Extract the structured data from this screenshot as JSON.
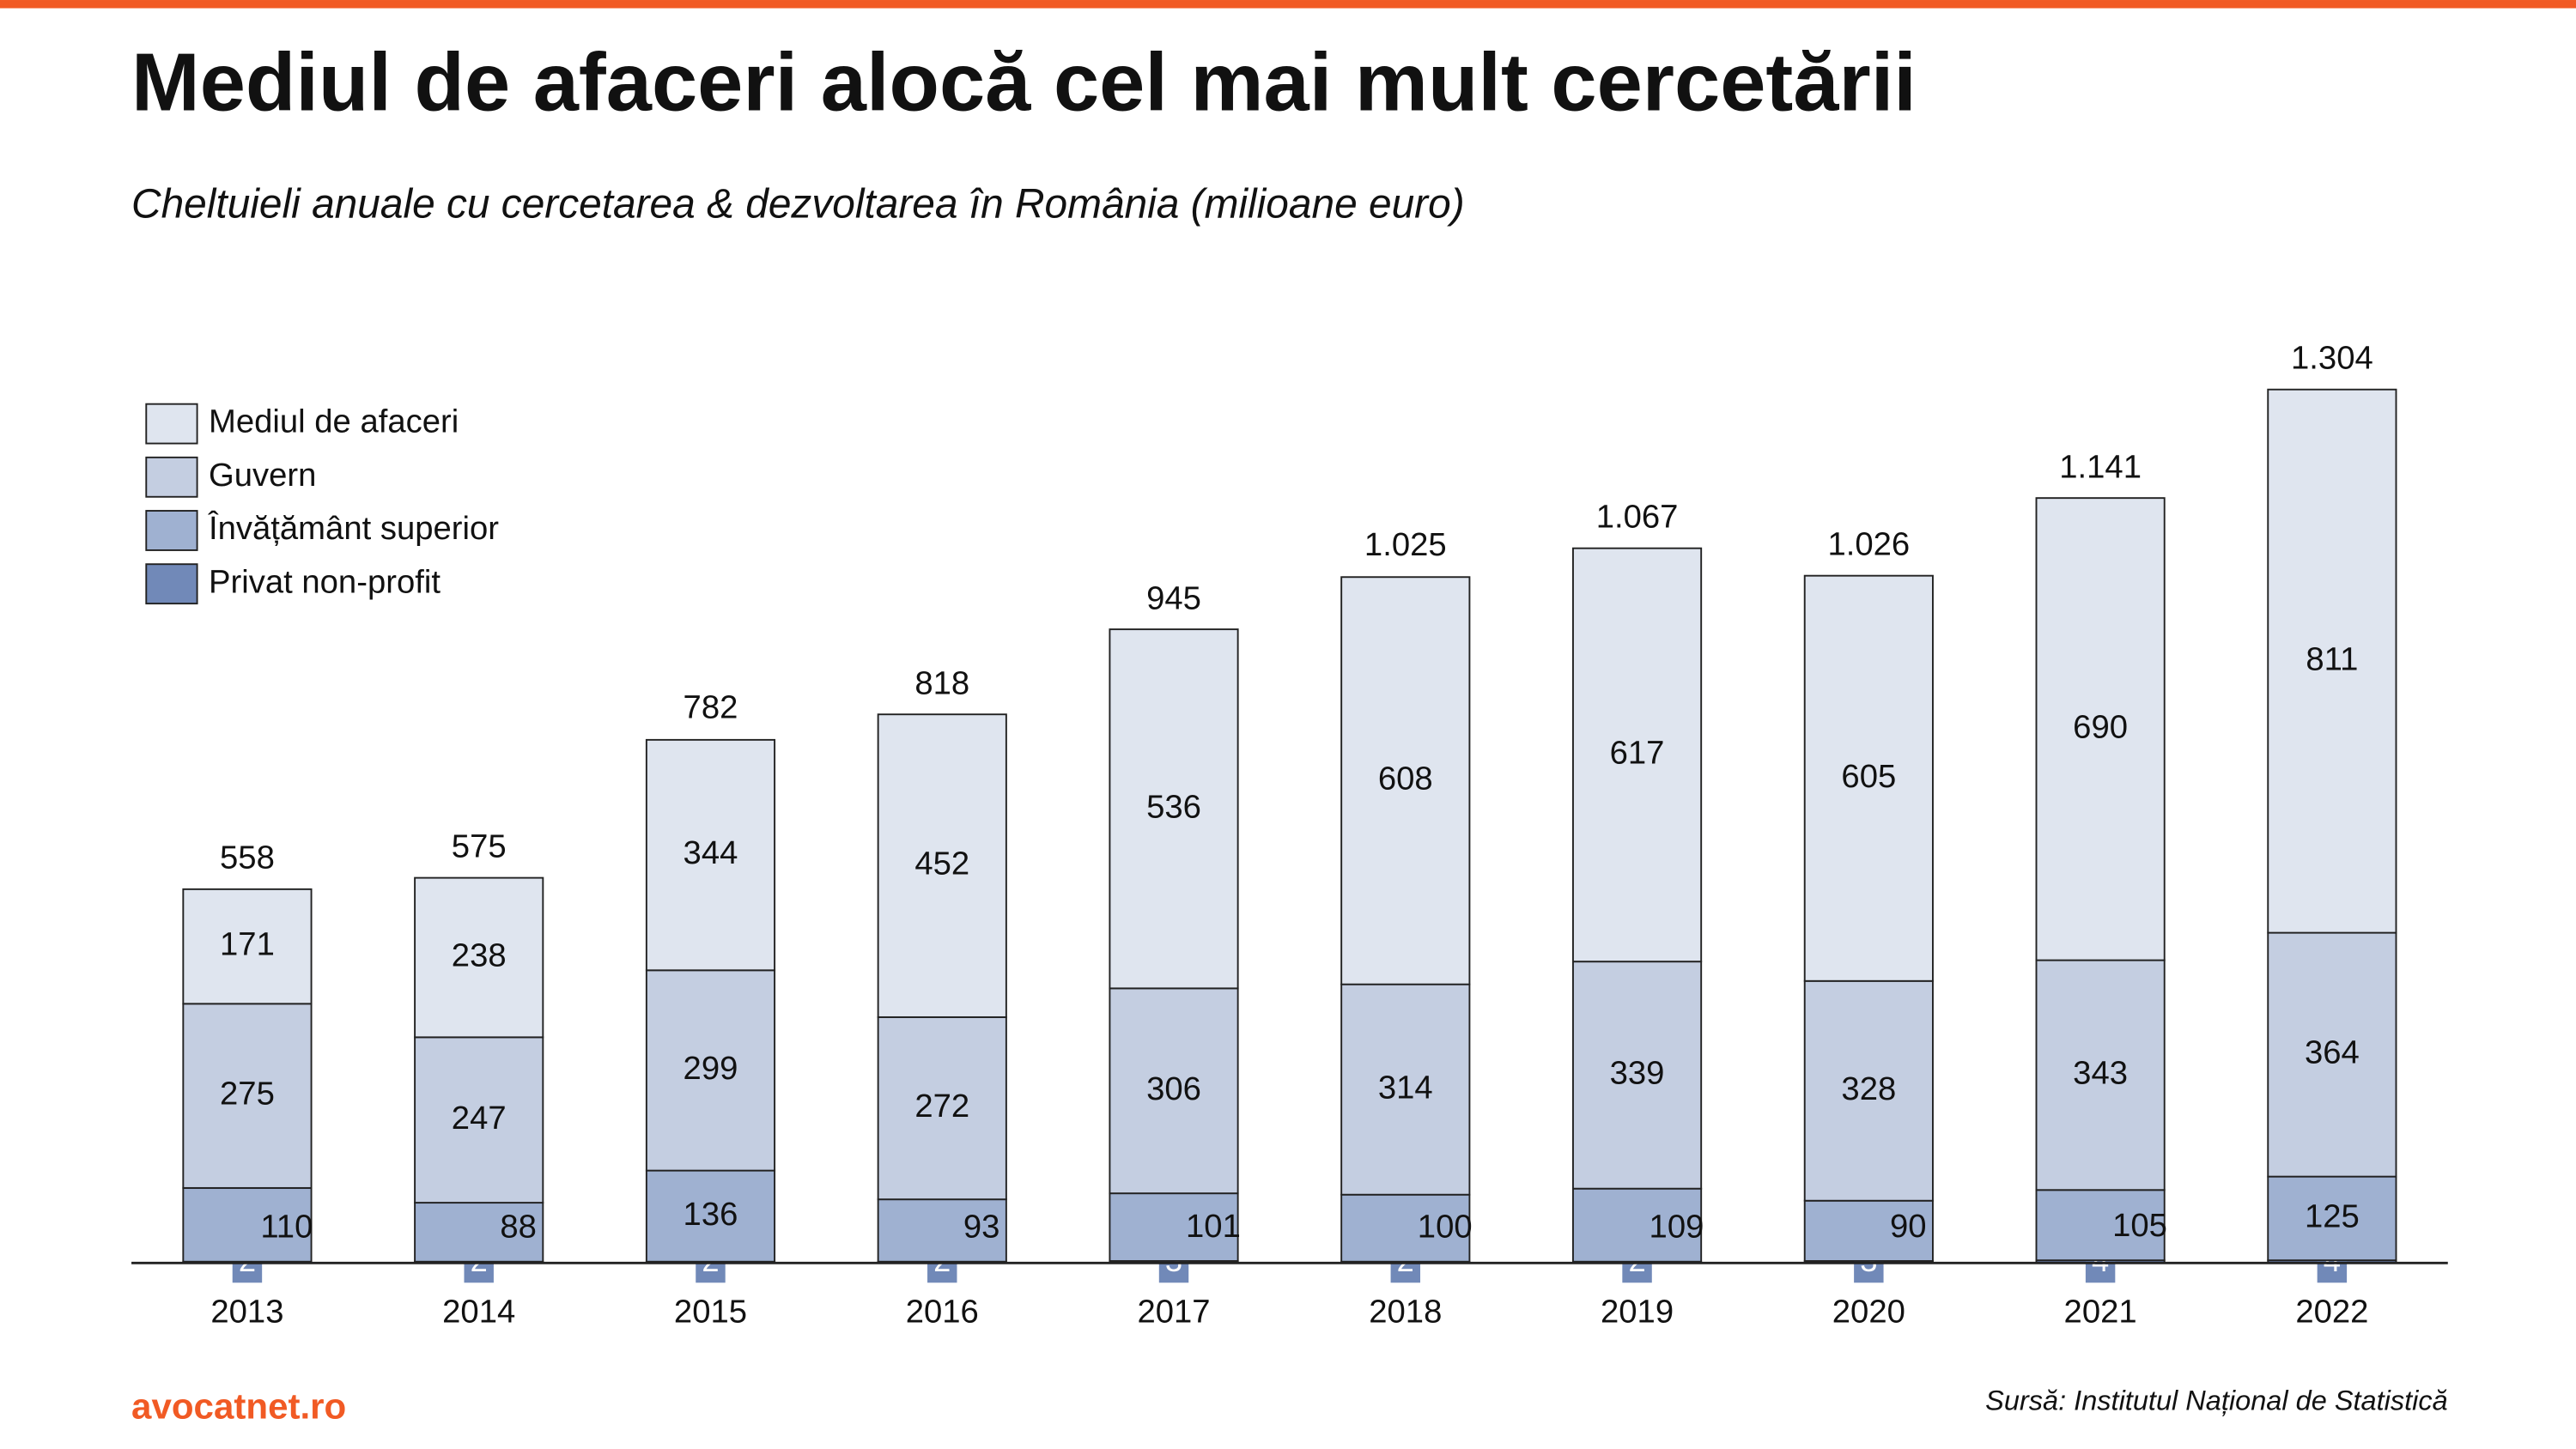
{
  "chart_data": {
    "type": "stacked-bar",
    "title": "Mediul de afaceri alocă cel mai mult cercetării",
    "subtitle": "Cheltuieli anuale cu cercetarea & dezvoltarea în România (milioane euro)",
    "categories": [
      "2013",
      "2014",
      "2015",
      "2016",
      "2017",
      "2018",
      "2019",
      "2020",
      "2021",
      "2022"
    ],
    "series": [
      {
        "name": "Privat non-profit",
        "color": "#7189b8",
        "values": [
          2,
          2,
          2,
          2,
          3,
          2,
          2,
          3,
          4,
          4
        ]
      },
      {
        "name": "Învățământ superior",
        "color": "#9fb1d1",
        "values": [
          110,
          88,
          136,
          93,
          101,
          100,
          109,
          90,
          105,
          125
        ]
      },
      {
        "name": "Guvern",
        "color": "#c4cee1",
        "values": [
          275,
          247,
          299,
          272,
          306,
          314,
          339,
          328,
          343,
          364
        ]
      },
      {
        "name": "Mediul de afaceri",
        "color": "#dfe5ef",
        "values": [
          171,
          238,
          344,
          452,
          536,
          608,
          617,
          605,
          690,
          811
        ]
      }
    ],
    "totals": {
      "values": [
        558,
        575,
        782,
        818,
        945,
        1025,
        1067,
        1026,
        1141,
        1304
      ],
      "value_labels": [
        "558",
        "575",
        "782",
        "818",
        "945",
        "1.025",
        "1.067",
        "1.026",
        "1.141",
        "1.304"
      ]
    },
    "ylim": [
      0,
      1400
    ],
    "legend": "top-left",
    "source": "Sursă: Institutul Național de Statistică",
    "brand": "avocatnet.ro"
  }
}
